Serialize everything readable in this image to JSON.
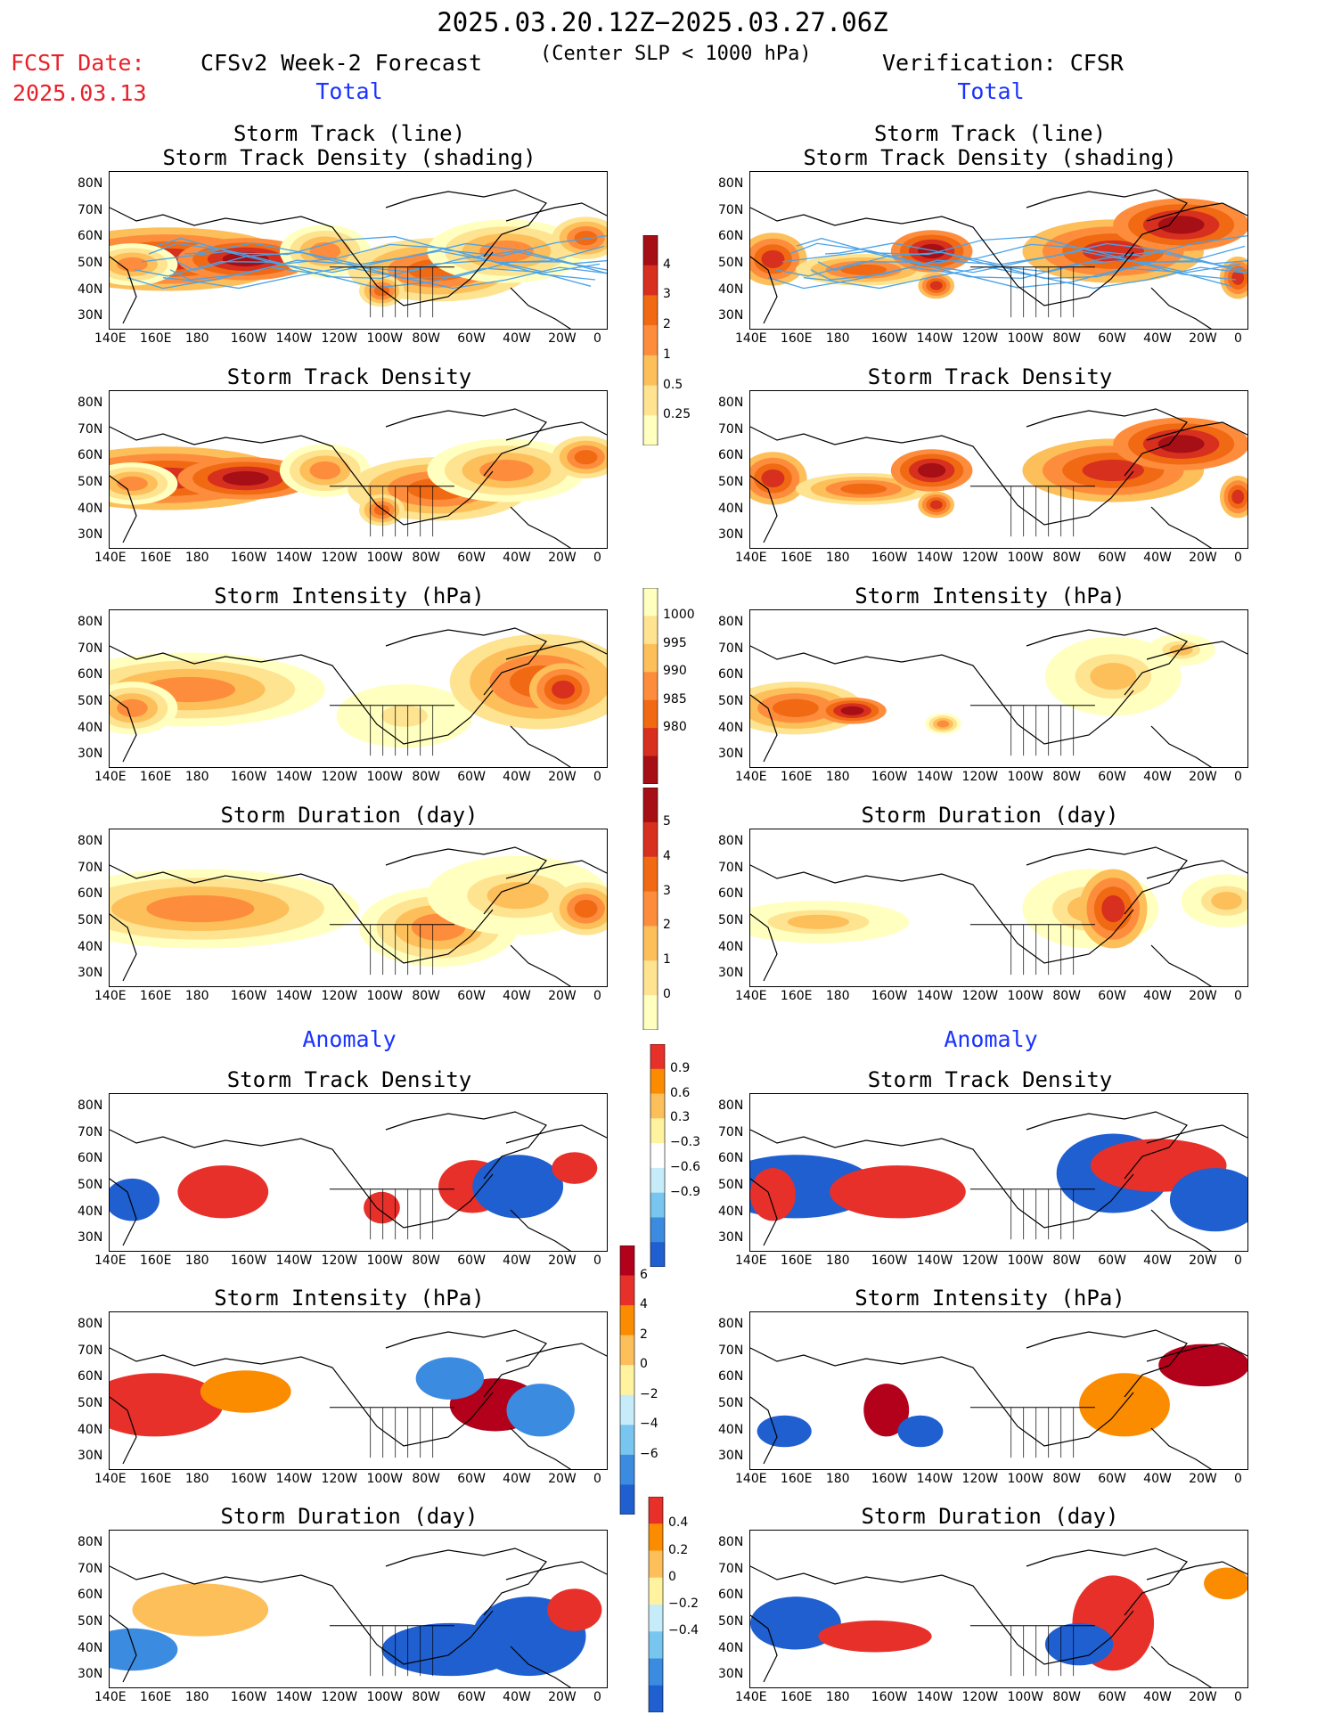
{
  "header": {
    "title": "2025.03.20.12Z−2025.03.27.06Z",
    "subtitle": "(Center SLP < 1000 hPa)",
    "fcst_date_label": "FCST Date:",
    "fcst_date_value": "2025.03.13",
    "left_label": "CFSv2 Week-2 Forecast",
    "right_label": "Verification: CFSR"
  },
  "sections": {
    "total": "Total",
    "anomaly": "Anomaly"
  },
  "panel_titles": {
    "track_line": "Storm Track (line)",
    "track_shading": "Storm Track Density (shading)",
    "density": "Storm Track Density",
    "intensity": "Storm Intensity (hPa)",
    "duration": "Storm Duration (day)"
  },
  "axes": {
    "lat_labels": [
      "80N",
      "70N",
      "60N",
      "50N",
      "40N",
      "30N"
    ],
    "lon_labels": [
      "140E",
      "160E",
      "180",
      "160W",
      "140W",
      "120W",
      "100W",
      "80W",
      "60W",
      "40W",
      "20W",
      "0"
    ]
  },
  "colorbars": {
    "density_total": {
      "labels": [
        "4",
        "3",
        "2",
        "1",
        "0.5",
        "0.25"
      ],
      "colors": [
        "#a50f15",
        "#d7301f",
        "#f16913",
        "#fd8d3c",
        "#fdbf5a",
        "#fee391",
        "#ffffbf"
      ]
    },
    "intensity_total": {
      "labels": [
        "1000",
        "995",
        "990",
        "985",
        "980"
      ],
      "colors": [
        "#ffffbf",
        "#fee391",
        "#fdbf5a",
        "#fd8d3c",
        "#f16913",
        "#d7301f",
        "#a50f15"
      ]
    },
    "duration_total": {
      "labels": [
        "5",
        "4",
        "3",
        "2",
        "1",
        "0"
      ],
      "colors": [
        "#a50f15",
        "#d7301f",
        "#f16913",
        "#fd8d3c",
        "#fdbf5a",
        "#fee391",
        "#ffffbf"
      ]
    },
    "density_anom": {
      "labels": [
        "0.9",
        "0.6",
        "0.3",
        "−0.3",
        "−0.6",
        "−0.9"
      ],
      "colors": [
        "#e8302a",
        "#fb8c00",
        "#fdbf5a",
        "#fff3a0",
        "#ffffff",
        "#c6ecfa",
        "#78c6f0",
        "#3b8be0",
        "#1f5fd0"
      ]
    },
    "intensity_anom": {
      "labels": [
        "6",
        "4",
        "2",
        "0",
        "−2",
        "−4",
        "−6"
      ],
      "colors": [
        "#b3001b",
        "#e8302a",
        "#fb8c00",
        "#fdbf5a",
        "#fff3a0",
        "#c6ecfa",
        "#78c6f0",
        "#3b8be0",
        "#1f5fd0"
      ]
    },
    "duration_anom": {
      "labels": [
        "0.4",
        "0.2",
        "0",
        "−0.2",
        "−0.4"
      ],
      "colors": [
        "#e8302a",
        "#fb8c00",
        "#fdbf5a",
        "#fff3a0",
        "#c6ecfa",
        "#78c6f0",
        "#3b8be0",
        "#1f5fd0"
      ]
    }
  }
}
